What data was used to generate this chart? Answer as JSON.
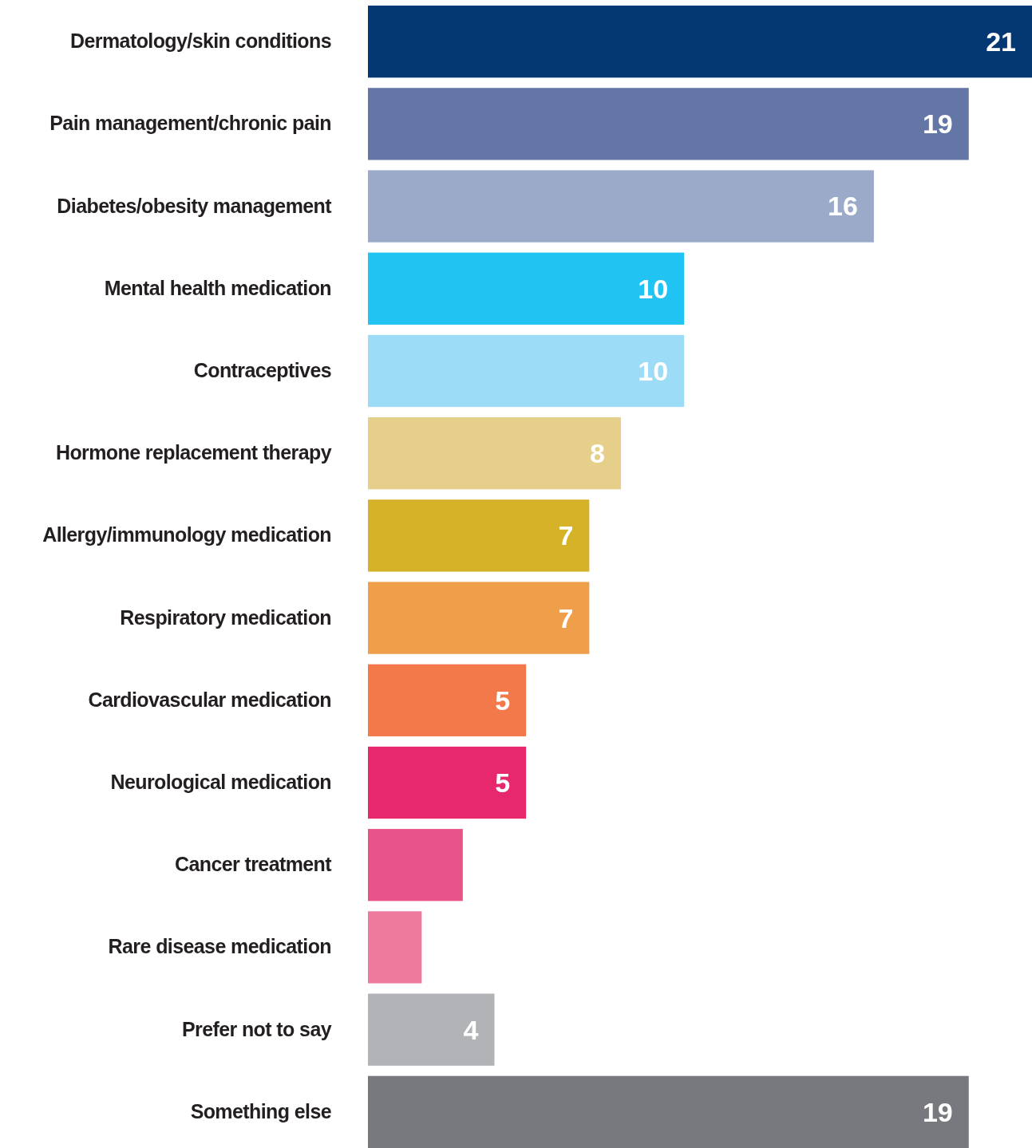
{
  "chart_data": {
    "type": "bar",
    "orientation": "horizontal",
    "categories": [
      "Dermatology/skin conditions",
      "Pain management/chronic pain",
      "Diabetes/obesity management",
      "Mental health medication",
      "Contraceptives",
      "Hormone replacement therapy",
      "Allergy/immunology medication",
      "Respiratory medication",
      "Cardiovascular medication",
      "Neurological medication",
      "Cancer treatment",
      "Rare disease medication",
      "Prefer not to say",
      "Something else"
    ],
    "values": [
      21,
      19,
      16,
      10,
      10,
      8,
      7,
      7,
      5,
      5,
      3,
      1.7,
      4,
      19
    ],
    "value_labels": [
      "21",
      "19",
      "16",
      "10",
      "10",
      "8",
      "7",
      "7",
      "5",
      "5",
      null,
      null,
      "4",
      "19"
    ],
    "colors": [
      "#043873",
      "#6476a5",
      "#9caac9",
      "#20c3f1",
      "#9ddcf6",
      "#e6cf8a",
      "#d5b228",
      "#ef9e4a",
      "#f3794a",
      "#e8286c",
      "#e8548a",
      "#ed7a9c",
      "#b2b3b6",
      "#78797e"
    ],
    "xlim": [
      0,
      21
    ]
  }
}
